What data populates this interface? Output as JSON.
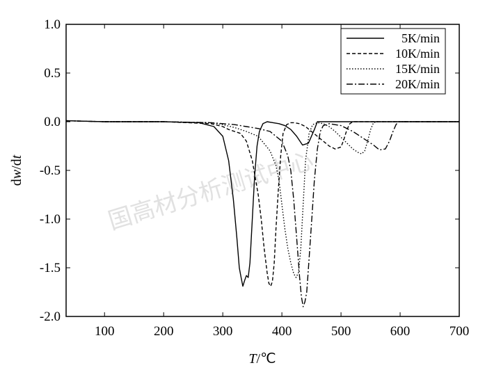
{
  "chart_data": {
    "type": "line",
    "title": "",
    "xlabel_var": "T",
    "xlabel_unit": "/℃",
    "ylabel_prefix": "d",
    "ylabel_w": "w",
    "ylabel_mid": "/d",
    "ylabel_t": "t",
    "xlim": [
      35,
      700
    ],
    "ylim": [
      -2.0,
      1.0
    ],
    "xticks": [
      100,
      200,
      300,
      400,
      500,
      600,
      700
    ],
    "yticks": [
      1.0,
      0.5,
      0.0,
      -0.5,
      -1.0,
      -1.5,
      -2.0
    ],
    "ytick_labels": [
      "1.0",
      "0.5",
      "0.0",
      "-0.5",
      "-1.0",
      "-1.5",
      "-2.0"
    ],
    "grid": false,
    "legend_position": "top-right",
    "watermark": "国高材分析测试中心",
    "series": [
      {
        "name": "5K/min",
        "style": "solid",
        "x": [
          35,
          100,
          200,
          260,
          285,
          300,
          310,
          318,
          324,
          328,
          331,
          334,
          337,
          340,
          343,
          346,
          350,
          354,
          358,
          362,
          368,
          375,
          385,
          395,
          405,
          415,
          425,
          435,
          445,
          455,
          460,
          470,
          500,
          600,
          700
        ],
        "y": [
          0.01,
          0.0,
          0.0,
          -0.01,
          -0.05,
          -0.15,
          -0.4,
          -0.8,
          -1.2,
          -1.5,
          -1.6,
          -1.69,
          -1.63,
          -1.58,
          -1.6,
          -1.45,
          -1.0,
          -0.55,
          -0.25,
          -0.1,
          -0.02,
          0.0,
          -0.01,
          -0.02,
          -0.04,
          -0.08,
          -0.15,
          -0.24,
          -0.22,
          -0.08,
          0.0,
          0.0,
          0.0,
          0.0,
          0.0
        ]
      },
      {
        "name": "10K/min",
        "style": "dashed",
        "x": [
          35,
          100,
          200,
          280,
          300,
          310,
          320,
          330,
          340,
          350,
          360,
          365,
          370,
          375,
          378,
          381,
          384,
          387,
          390,
          394,
          398,
          402,
          408,
          415,
          420,
          430,
          440,
          450,
          460,
          470,
          480,
          490,
          500,
          505,
          510,
          515,
          520,
          530,
          600,
          700
        ],
        "y": [
          0.01,
          0.0,
          0.0,
          -0.02,
          -0.05,
          -0.08,
          -0.1,
          -0.12,
          -0.2,
          -0.4,
          -0.75,
          -1.0,
          -1.3,
          -1.55,
          -1.66,
          -1.69,
          -1.64,
          -1.45,
          -1.1,
          -0.7,
          -0.35,
          -0.12,
          -0.03,
          -0.01,
          -0.01,
          -0.02,
          -0.05,
          -0.1,
          -0.15,
          -0.2,
          -0.25,
          -0.28,
          -0.26,
          -0.18,
          -0.08,
          -0.02,
          0.0,
          0.0,
          0.0,
          0.0
        ]
      },
      {
        "name": "15K/min",
        "style": "dotted",
        "x": [
          35,
          100,
          200,
          280,
          300,
          320,
          340,
          360,
          380,
          390,
          395,
          400,
          405,
          410,
          415,
          420,
          424,
          428,
          432,
          436,
          440,
          446,
          452,
          460,
          470,
          480,
          490,
          500,
          510,
          520,
          530,
          535,
          540,
          545,
          550,
          555,
          560,
          570,
          600,
          700
        ],
        "y": [
          0.01,
          0.0,
          0.0,
          -0.01,
          -0.03,
          -0.06,
          -0.1,
          -0.15,
          -0.3,
          -0.45,
          -0.6,
          -0.85,
          -1.1,
          -1.3,
          -1.45,
          -1.56,
          -1.6,
          -1.55,
          -1.3,
          -0.85,
          -0.4,
          -0.12,
          -0.03,
          -0.01,
          -0.02,
          -0.05,
          -0.1,
          -0.16,
          -0.22,
          -0.28,
          -0.32,
          -0.33,
          -0.3,
          -0.2,
          -0.08,
          -0.01,
          0.0,
          0.0,
          0.0,
          0.0
        ]
      },
      {
        "name": "20K/min",
        "style": "dashdot",
        "x": [
          35,
          100,
          200,
          280,
          300,
          320,
          340,
          360,
          380,
          400,
          410,
          415,
          420,
          425,
          430,
          433,
          436,
          439,
          442,
          445,
          450,
          455,
          460,
          465,
          470,
          480,
          500,
          520,
          540,
          555,
          565,
          575,
          582,
          588,
          593,
          597,
          600,
          620,
          650,
          700
        ],
        "y": [
          0.01,
          0.0,
          0.0,
          -0.01,
          -0.02,
          -0.03,
          -0.05,
          -0.07,
          -0.1,
          -0.2,
          -0.35,
          -0.5,
          -0.8,
          -1.2,
          -1.6,
          -1.8,
          -1.9,
          -1.85,
          -1.75,
          -1.5,
          -1.05,
          -0.6,
          -0.28,
          -0.1,
          -0.04,
          -0.02,
          -0.04,
          -0.1,
          -0.18,
          -0.24,
          -0.29,
          -0.28,
          -0.2,
          -0.1,
          -0.03,
          0.0,
          0.0,
          0.0,
          0.0,
          0.0
        ]
      }
    ]
  }
}
